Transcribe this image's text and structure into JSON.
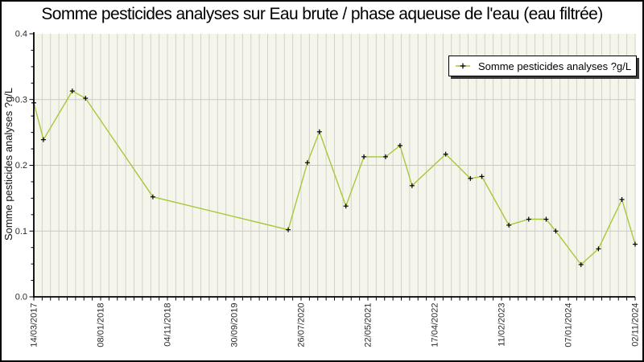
{
  "title": "Somme pesticides analyses sur Eau brute / phase aqueuse de l'eau (eau filtrée)",
  "y_axis_title": "Somme pesticides analyses ?g/L",
  "legend": {
    "position": "top-right",
    "items": [
      {
        "label": "Somme pesticides analyses ?g/L",
        "marker": "plus-on-line"
      }
    ]
  },
  "colors": {
    "line": "#a6c83a",
    "marker": "#000000",
    "plot_bg": "#f5f5ec",
    "grid_vertical": "#d2d2ca",
    "grid_horizontal": "#c9c9c1",
    "axis": "#000000",
    "tick_label": "#2a2a2a",
    "legend_bg": "#ffffff",
    "legend_border": "#000000",
    "legend_shadow": "#3a3a3a",
    "page_bg": "#ffffff",
    "page_border": "#000000"
  },
  "chart_data": {
    "type": "line",
    "title": "Somme pesticides analyses sur Eau brute / phase aqueuse de l'eau (eau filtrée)",
    "xlabel": "",
    "ylabel": "Somme pesticides analyses ?g/L",
    "ylim": [
      0,
      0.4
    ],
    "y_major_tick_step": 0.1,
    "y_minor_tick_step": 0.025,
    "y_tick_labels": [
      "0.0",
      "0.1",
      "0.2",
      "0.3",
      "0.4"
    ],
    "x_tick_labels": [
      "14/03/2017",
      "08/01/2018",
      "04/11/2018",
      "30/09/2019",
      "26/07/2020",
      "22/05/2021",
      "17/04/2022",
      "11/02/2023",
      "07/01/2024",
      "02/11/2024"
    ],
    "x_minor_gridline_count": 73,
    "grid": "on",
    "legend_position": "top-right",
    "series": [
      {
        "name": "Somme pesticides analyses ?g/L",
        "color": "#a6c83a",
        "marker": "+",
        "points_format": "[x_fraction_of_axis, value_ug_per_L]",
        "points": [
          [
            0.0,
            0.295
          ],
          [
            0.016,
            0.239
          ],
          [
            0.064,
            0.313
          ],
          [
            0.086,
            0.302
          ],
          [
            0.198,
            0.152
          ],
          [
            0.423,
            0.102
          ],
          [
            0.455,
            0.204
          ],
          [
            0.475,
            0.251
          ],
          [
            0.519,
            0.138
          ],
          [
            0.549,
            0.213
          ],
          [
            0.585,
            0.213
          ],
          [
            0.609,
            0.23
          ],
          [
            0.629,
            0.169
          ],
          [
            0.685,
            0.217
          ],
          [
            0.726,
            0.18
          ],
          [
            0.745,
            0.183
          ],
          [
            0.79,
            0.109
          ],
          [
            0.823,
            0.118
          ],
          [
            0.852,
            0.118
          ],
          [
            0.868,
            0.1
          ],
          [
            0.91,
            0.049
          ],
          [
            0.939,
            0.073
          ],
          [
            0.978,
            0.148
          ],
          [
            1.0,
            0.08
          ]
        ]
      }
    ]
  }
}
